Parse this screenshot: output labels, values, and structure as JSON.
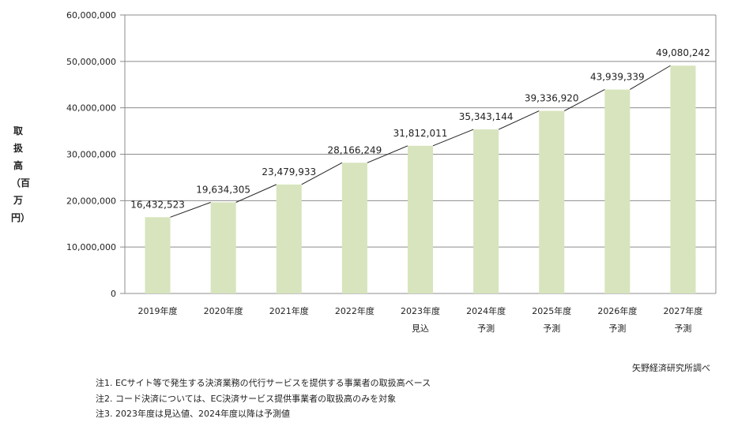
{
  "chart_data": {
    "type": "bar",
    "title": "",
    "xlabel": "",
    "ylabel": "取扱高（百万円）",
    "ylim": [
      0,
      60000000
    ],
    "yticks": [
      0,
      10000000,
      20000000,
      30000000,
      40000000,
      50000000,
      60000000
    ],
    "ytick_labels": [
      "0",
      "10,000,000",
      "20,000,000",
      "30,000,000",
      "40,000,000",
      "50,000,000",
      "60,000,000"
    ],
    "grid": true,
    "categories": [
      [
        "2019年度",
        ""
      ],
      [
        "2020年度",
        ""
      ],
      [
        "2021年度",
        ""
      ],
      [
        "2022年度",
        ""
      ],
      [
        "2023年度",
        "見込"
      ],
      [
        "2024年度",
        "予測"
      ],
      [
        "2025年度",
        "予測"
      ],
      [
        "2026年度",
        "予測"
      ],
      [
        "2027年度",
        "予測"
      ]
    ],
    "values": [
      16432523,
      19634305,
      23479933,
      28166249,
      31812011,
      35343144,
      39336920,
      43939339,
      49080242
    ],
    "value_labels": [
      "16,432,523",
      "19,634,305",
      "23,479,933",
      "28,166,249",
      "31,812,011",
      "35,343,144",
      "39,336,920",
      "43,939,339",
      "49,080,242"
    ],
    "bar_color": "#d7e4bd",
    "connector_lines": true
  },
  "source": "矢野経済研究所調べ",
  "notes": [
    "注1. ECサイト等で発生する決済業務の代行サービスを提供する事業者の取扱高ベース",
    "注2. コード決済については、EC決済サービス提供事業者の取扱高のみを対象",
    "注3. 2023年度は見込値、2024年度以降は予測値"
  ]
}
